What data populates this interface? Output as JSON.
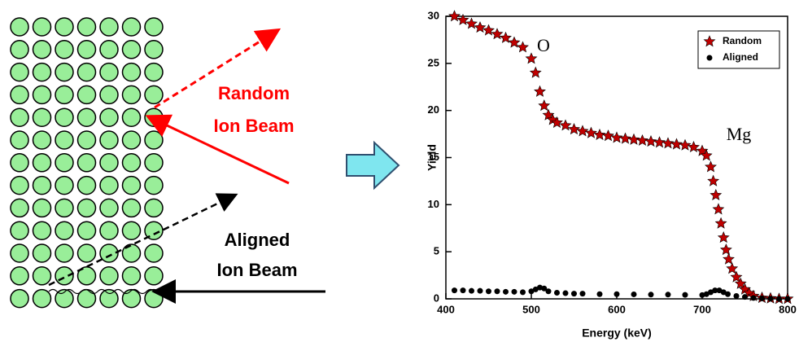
{
  "diagram": {
    "random_label": [
      "Random",
      "Ion Beam"
    ],
    "aligned_label": [
      "Aligned",
      "Ion Beam"
    ]
  },
  "chart_data": {
    "type": "scatter",
    "xlabel": "Energy (keV)",
    "ylabel": "Yield",
    "xlim": [
      400,
      800
    ],
    "ylim": [
      0,
      30
    ],
    "xticks": [
      400,
      500,
      600,
      700,
      800
    ],
    "yticks": [
      0,
      5,
      10,
      15,
      20,
      25,
      30
    ],
    "legend": "upper right",
    "annotations": [
      "O",
      "Mg"
    ],
    "series": [
      {
        "name": "Random",
        "color": "#c00000",
        "marker": "star",
        "x": [
          410,
          420,
          430,
          440,
          450,
          460,
          470,
          480,
          490,
          500,
          505,
          510,
          515,
          520,
          525,
          530,
          540,
          550,
          560,
          570,
          580,
          590,
          600,
          610,
          620,
          630,
          640,
          650,
          660,
          670,
          680,
          690,
          700,
          705,
          710,
          713,
          716,
          719,
          722,
          725,
          728,
          731,
          735,
          740,
          745,
          750,
          755,
          760,
          770,
          780,
          790,
          800
        ],
        "values": [
          30,
          29.6,
          29.2,
          28.8,
          28.5,
          28.1,
          27.7,
          27.2,
          26.7,
          25.5,
          24,
          22,
          20.5,
          19.5,
          19,
          18.7,
          18.4,
          18,
          17.8,
          17.6,
          17.4,
          17.3,
          17.1,
          17,
          16.9,
          16.8,
          16.7,
          16.6,
          16.5,
          16.4,
          16.3,
          16.1,
          15.7,
          15.2,
          14,
          12.5,
          11,
          9.5,
          8,
          6.5,
          5.2,
          4.2,
          3.2,
          2.3,
          1.6,
          1,
          0.6,
          0.3,
          0.1,
          0.05,
          0,
          0
        ]
      },
      {
        "name": "Aligned",
        "color": "#000000",
        "marker": "circle",
        "x": [
          410,
          420,
          430,
          440,
          450,
          460,
          470,
          480,
          490,
          500,
          505,
          510,
          515,
          520,
          530,
          540,
          550,
          560,
          580,
          600,
          620,
          640,
          660,
          680,
          700,
          705,
          710,
          715,
          720,
          725,
          730,
          740,
          750,
          760,
          770,
          780,
          790,
          800
        ],
        "values": [
          0.9,
          0.9,
          0.85,
          0.85,
          0.8,
          0.8,
          0.75,
          0.75,
          0.7,
          0.8,
          1,
          1.2,
          1.1,
          0.8,
          0.65,
          0.6,
          0.55,
          0.55,
          0.5,
          0.5,
          0.48,
          0.45,
          0.45,
          0.42,
          0.4,
          0.5,
          0.7,
          0.9,
          0.9,
          0.7,
          0.5,
          0.3,
          0.2,
          0.1,
          0.05,
          0.02,
          0,
          0
        ]
      }
    ]
  }
}
